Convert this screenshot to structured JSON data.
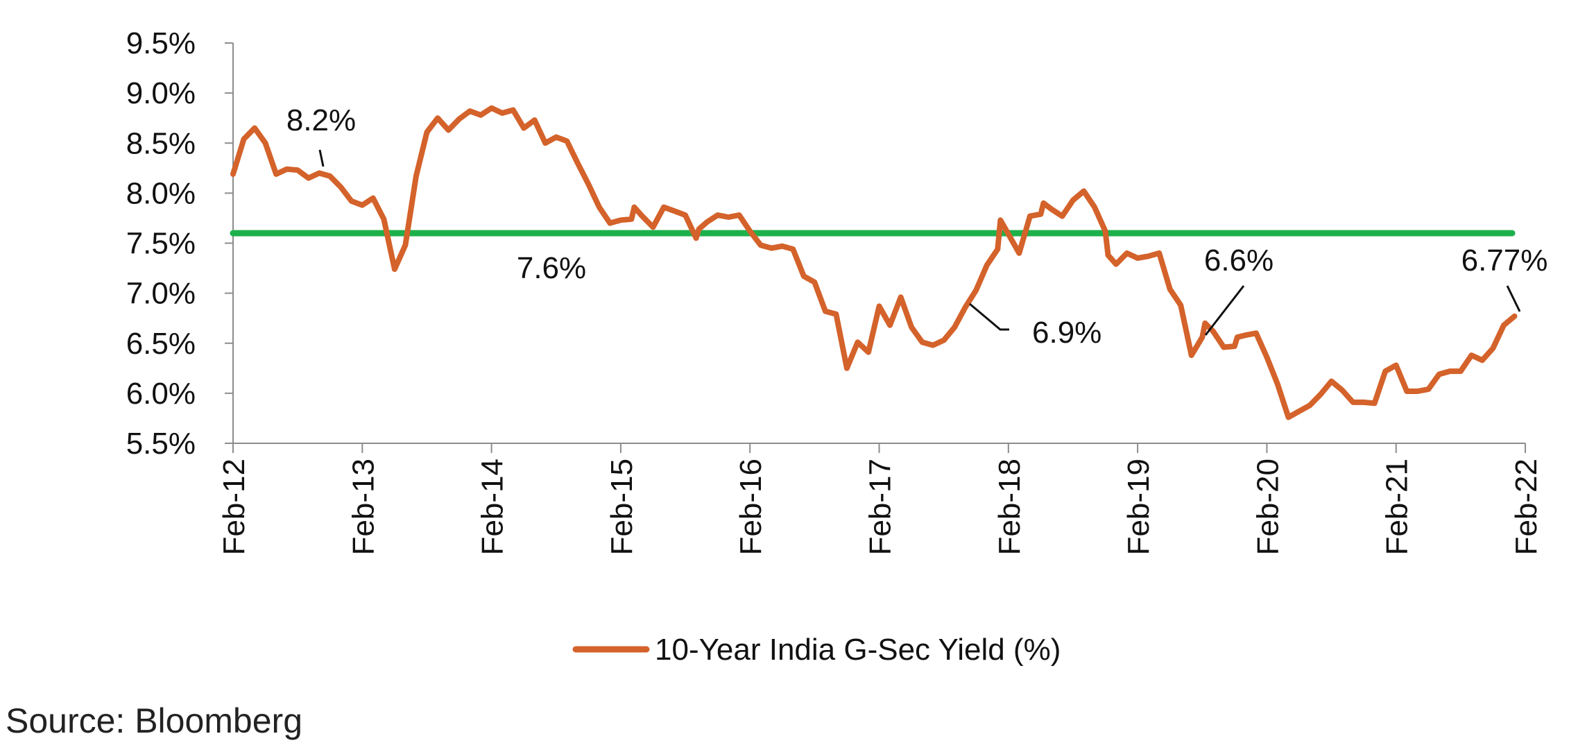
{
  "chart_data": {
    "type": "line",
    "title": "",
    "xlabel": "",
    "ylabel": "",
    "ylim": [
      5.5,
      9.5
    ],
    "yticks": [
      {
        "value": 9.5,
        "label": "9.5%"
      },
      {
        "value": 9.0,
        "label": "9.0%"
      },
      {
        "value": 8.5,
        "label": "8.5%"
      },
      {
        "value": 8.0,
        "label": "8.0%"
      },
      {
        "value": 7.5,
        "label": "7.5%"
      },
      {
        "value": 7.0,
        "label": "7.0%"
      },
      {
        "value": 6.5,
        "label": "6.5%"
      },
      {
        "value": 6.0,
        "label": "6.0%"
      },
      {
        "value": 5.5,
        "label": "5.5%"
      }
    ],
    "xrange": [
      "2012-02",
      "2022-02"
    ],
    "xticks": [
      {
        "date": "2012-02",
        "label": "Feb-12"
      },
      {
        "date": "2013-02",
        "label": "Feb-13"
      },
      {
        "date": "2014-02",
        "label": "Feb-14"
      },
      {
        "date": "2015-02",
        "label": "Feb-15"
      },
      {
        "date": "2016-02",
        "label": "Feb-16"
      },
      {
        "date": "2017-02",
        "label": "Feb-17"
      },
      {
        "date": "2018-02",
        "label": "Feb-18"
      },
      {
        "date": "2019-02",
        "label": "Feb-19"
      },
      {
        "date": "2020-02",
        "label": "Feb-20"
      },
      {
        "date": "2021-02",
        "label": "Feb-21"
      },
      {
        "date": "2022-02",
        "label": "Feb-22"
      }
    ],
    "series": [
      {
        "name": "10-Year India G-Sec Yield (%)",
        "color": "#D4622B",
        "points": [
          [
            "2012-02",
            8.19
          ],
          [
            "2012-03",
            8.54
          ],
          [
            "2012-04",
            8.65
          ],
          [
            "2012-05",
            8.5
          ],
          [
            "2012-06",
            8.19
          ],
          [
            "2012-07",
            8.24
          ],
          [
            "2012-08",
            8.23
          ],
          [
            "2012-09",
            8.15
          ],
          [
            "2012-10",
            8.2
          ],
          [
            "2012-11",
            8.17
          ],
          [
            "2012-12",
            8.06
          ],
          [
            "2013-01",
            7.92
          ],
          [
            "2013-02",
            7.88
          ],
          [
            "2013-03",
            7.95
          ],
          [
            "2013-04",
            7.74
          ],
          [
            "2013-05",
            7.24
          ],
          [
            "2013-06",
            7.48
          ],
          [
            "2013-07",
            8.17
          ],
          [
            "2013-08",
            8.61
          ],
          [
            "2013-09",
            8.75
          ],
          [
            "2013-10",
            8.63
          ],
          [
            "2013-11",
            8.74
          ],
          [
            "2013-12",
            8.82
          ],
          [
            "2014-01",
            8.78
          ],
          [
            "2014-02",
            8.85
          ],
          [
            "2014-03",
            8.8
          ],
          [
            "2014-04",
            8.83
          ],
          [
            "2014-05",
            8.65
          ],
          [
            "2014-06",
            8.73
          ],
          [
            "2014-07",
            8.5
          ],
          [
            "2014-08",
            8.56
          ],
          [
            "2014-09",
            8.52
          ],
          [
            "2014-10",
            8.3
          ],
          [
            "2014-11",
            8.09
          ],
          [
            "2014-12",
            7.86
          ],
          [
            "2015-01",
            7.7
          ],
          [
            "2015-02",
            7.73
          ],
          [
            "2015-03",
            7.74
          ],
          [
            "2015-03",
            7.86
          ],
          [
            "2015-04",
            7.77
          ],
          [
            "2015-05",
            7.66
          ],
          [
            "2015-06",
            7.86
          ],
          [
            "2015-07",
            7.82
          ],
          [
            "2015-08",
            7.78
          ],
          [
            "2015-09",
            7.55
          ],
          [
            "2015-09",
            7.64
          ],
          [
            "2015-10",
            7.71
          ],
          [
            "2015-11",
            7.78
          ],
          [
            "2015-12",
            7.76
          ],
          [
            "2016-01",
            7.78
          ],
          [
            "2016-02",
            7.62
          ],
          [
            "2016-03",
            7.48
          ],
          [
            "2016-04",
            7.45
          ],
          [
            "2016-05",
            7.47
          ],
          [
            "2016-06",
            7.44
          ],
          [
            "2016-07",
            7.17
          ],
          [
            "2016-08",
            7.11
          ],
          [
            "2016-09",
            6.82
          ],
          [
            "2016-10",
            6.79
          ],
          [
            "2016-11",
            6.25
          ],
          [
            "2016-12",
            6.51
          ],
          [
            "2017-01",
            6.41
          ],
          [
            "2017-02",
            6.87
          ],
          [
            "2017-03",
            6.68
          ],
          [
            "2017-04",
            6.96
          ],
          [
            "2017-05",
            6.66
          ],
          [
            "2017-06",
            6.51
          ],
          [
            "2017-07",
            6.48
          ],
          [
            "2017-08",
            6.53
          ],
          [
            "2017-09",
            6.66
          ],
          [
            "2017-10",
            6.86
          ],
          [
            "2017-11",
            7.03
          ],
          [
            "2017-12",
            7.28
          ],
          [
            "2018-01",
            7.44
          ],
          [
            "2018-01",
            7.73
          ],
          [
            "2018-02",
            7.59
          ],
          [
            "2018-03",
            7.4
          ],
          [
            "2018-04",
            7.77
          ],
          [
            "2018-05",
            7.79
          ],
          [
            "2018-05",
            7.9
          ],
          [
            "2018-06",
            7.84
          ],
          [
            "2018-07",
            7.77
          ],
          [
            "2018-08",
            7.93
          ],
          [
            "2018-09",
            8.02
          ],
          [
            "2018-10",
            7.86
          ],
          [
            "2018-11",
            7.62
          ],
          [
            "2018-11",
            7.38
          ],
          [
            "2018-12",
            7.29
          ],
          [
            "2019-01",
            7.4
          ],
          [
            "2019-02",
            7.35
          ],
          [
            "2019-03",
            7.37
          ],
          [
            "2019-04",
            7.4
          ],
          [
            "2019-05",
            7.04
          ],
          [
            "2019-06",
            6.88
          ],
          [
            "2019-07",
            6.38
          ],
          [
            "2019-08",
            6.56
          ],
          [
            "2019-08",
            6.7
          ],
          [
            "2019-09",
            6.62
          ],
          [
            "2019-10",
            6.46
          ],
          [
            "2019-11",
            6.47
          ],
          [
            "2019-11",
            6.56
          ],
          [
            "2019-12",
            6.58
          ],
          [
            "2020-01",
            6.6
          ],
          [
            "2020-02",
            6.36
          ],
          [
            "2020-03",
            6.09
          ],
          [
            "2020-04",
            5.76
          ],
          [
            "2020-05",
            5.82
          ],
          [
            "2020-06",
            5.88
          ],
          [
            "2020-07",
            5.99
          ],
          [
            "2020-08",
            6.12
          ],
          [
            "2020-09",
            6.03
          ],
          [
            "2020-10",
            5.91
          ],
          [
            "2020-11",
            5.91
          ],
          [
            "2020-12",
            5.9
          ],
          [
            "2021-01",
            6.22
          ],
          [
            "2021-02",
            6.28
          ],
          [
            "2021-03",
            6.02
          ],
          [
            "2021-04",
            6.02
          ],
          [
            "2021-05",
            6.04
          ],
          [
            "2021-06",
            6.19
          ],
          [
            "2021-07",
            6.22
          ],
          [
            "2021-08",
            6.22
          ],
          [
            "2021-09",
            6.38
          ],
          [
            "2021-10",
            6.33
          ],
          [
            "2021-11",
            6.45
          ],
          [
            "2021-12",
            6.68
          ],
          [
            "2022-01",
            6.77
          ]
        ]
      }
    ],
    "reference_line": {
      "value": 7.6,
      "color": "#1DB14B",
      "label": "7.6%"
    },
    "annotations": [
      {
        "text": "8.2%",
        "date": "2012-10",
        "value": 8.2
      },
      {
        "text": "6.9%",
        "date": "2017-10",
        "value": 6.9
      },
      {
        "text": "6.6%",
        "date": "2019-08",
        "value": 6.56
      },
      {
        "text": "6.77%",
        "date": "2022-01",
        "value": 6.77
      }
    ],
    "legend": {
      "position": "bottom",
      "label": "10-Year India G-Sec Yield (%)"
    },
    "grid": false
  },
  "source_text": "Source: Bloomberg"
}
